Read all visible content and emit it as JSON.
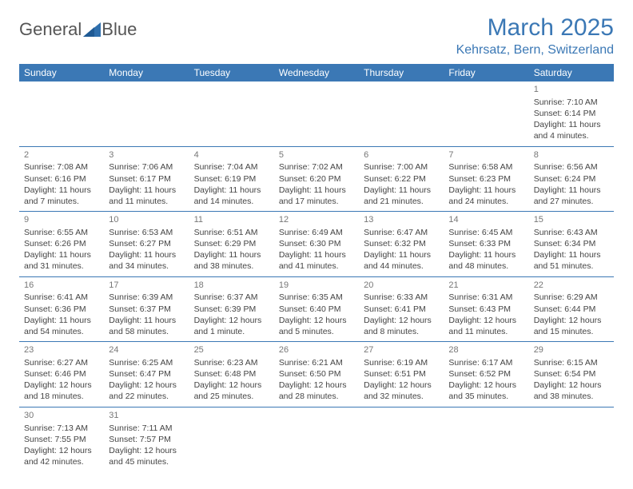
{
  "logo": {
    "text1": "General",
    "text2": "Blue",
    "triangle_color": "#2f6fad"
  },
  "title": "March 2025",
  "location": "Kehrsatz, Bern, Switzerland",
  "colors": {
    "header_bg": "#3b78b5",
    "header_fg": "#ffffff",
    "border": "#3b78b5"
  },
  "day_headers": [
    "Sunday",
    "Monday",
    "Tuesday",
    "Wednesday",
    "Thursday",
    "Friday",
    "Saturday"
  ],
  "weeks": [
    [
      null,
      null,
      null,
      null,
      null,
      null,
      {
        "n": "1",
        "sr": "7:10 AM",
        "ss": "6:14 PM",
        "dl": "11 hours and 4 minutes."
      }
    ],
    [
      {
        "n": "2",
        "sr": "7:08 AM",
        "ss": "6:16 PM",
        "dl": "11 hours and 7 minutes."
      },
      {
        "n": "3",
        "sr": "7:06 AM",
        "ss": "6:17 PM",
        "dl": "11 hours and 11 minutes."
      },
      {
        "n": "4",
        "sr": "7:04 AM",
        "ss": "6:19 PM",
        "dl": "11 hours and 14 minutes."
      },
      {
        "n": "5",
        "sr": "7:02 AM",
        "ss": "6:20 PM",
        "dl": "11 hours and 17 minutes."
      },
      {
        "n": "6",
        "sr": "7:00 AM",
        "ss": "6:22 PM",
        "dl": "11 hours and 21 minutes."
      },
      {
        "n": "7",
        "sr": "6:58 AM",
        "ss": "6:23 PM",
        "dl": "11 hours and 24 minutes."
      },
      {
        "n": "8",
        "sr": "6:56 AM",
        "ss": "6:24 PM",
        "dl": "11 hours and 27 minutes."
      }
    ],
    [
      {
        "n": "9",
        "sr": "6:55 AM",
        "ss": "6:26 PM",
        "dl": "11 hours and 31 minutes."
      },
      {
        "n": "10",
        "sr": "6:53 AM",
        "ss": "6:27 PM",
        "dl": "11 hours and 34 minutes."
      },
      {
        "n": "11",
        "sr": "6:51 AM",
        "ss": "6:29 PM",
        "dl": "11 hours and 38 minutes."
      },
      {
        "n": "12",
        "sr": "6:49 AM",
        "ss": "6:30 PM",
        "dl": "11 hours and 41 minutes."
      },
      {
        "n": "13",
        "sr": "6:47 AM",
        "ss": "6:32 PM",
        "dl": "11 hours and 44 minutes."
      },
      {
        "n": "14",
        "sr": "6:45 AM",
        "ss": "6:33 PM",
        "dl": "11 hours and 48 minutes."
      },
      {
        "n": "15",
        "sr": "6:43 AM",
        "ss": "6:34 PM",
        "dl": "11 hours and 51 minutes."
      }
    ],
    [
      {
        "n": "16",
        "sr": "6:41 AM",
        "ss": "6:36 PM",
        "dl": "11 hours and 54 minutes."
      },
      {
        "n": "17",
        "sr": "6:39 AM",
        "ss": "6:37 PM",
        "dl": "11 hours and 58 minutes."
      },
      {
        "n": "18",
        "sr": "6:37 AM",
        "ss": "6:39 PM",
        "dl": "12 hours and 1 minute."
      },
      {
        "n": "19",
        "sr": "6:35 AM",
        "ss": "6:40 PM",
        "dl": "12 hours and 5 minutes."
      },
      {
        "n": "20",
        "sr": "6:33 AM",
        "ss": "6:41 PM",
        "dl": "12 hours and 8 minutes."
      },
      {
        "n": "21",
        "sr": "6:31 AM",
        "ss": "6:43 PM",
        "dl": "12 hours and 11 minutes."
      },
      {
        "n": "22",
        "sr": "6:29 AM",
        "ss": "6:44 PM",
        "dl": "12 hours and 15 minutes."
      }
    ],
    [
      {
        "n": "23",
        "sr": "6:27 AM",
        "ss": "6:46 PM",
        "dl": "12 hours and 18 minutes."
      },
      {
        "n": "24",
        "sr": "6:25 AM",
        "ss": "6:47 PM",
        "dl": "12 hours and 22 minutes."
      },
      {
        "n": "25",
        "sr": "6:23 AM",
        "ss": "6:48 PM",
        "dl": "12 hours and 25 minutes."
      },
      {
        "n": "26",
        "sr": "6:21 AM",
        "ss": "6:50 PM",
        "dl": "12 hours and 28 minutes."
      },
      {
        "n": "27",
        "sr": "6:19 AM",
        "ss": "6:51 PM",
        "dl": "12 hours and 32 minutes."
      },
      {
        "n": "28",
        "sr": "6:17 AM",
        "ss": "6:52 PM",
        "dl": "12 hours and 35 minutes."
      },
      {
        "n": "29",
        "sr": "6:15 AM",
        "ss": "6:54 PM",
        "dl": "12 hours and 38 minutes."
      }
    ],
    [
      {
        "n": "30",
        "sr": "7:13 AM",
        "ss": "7:55 PM",
        "dl": "12 hours and 42 minutes."
      },
      {
        "n": "31",
        "sr": "7:11 AM",
        "ss": "7:57 PM",
        "dl": "12 hours and 45 minutes."
      },
      null,
      null,
      null,
      null,
      null
    ]
  ],
  "labels": {
    "sunrise": "Sunrise: ",
    "sunset": "Sunset: ",
    "daylight": "Daylight: "
  }
}
